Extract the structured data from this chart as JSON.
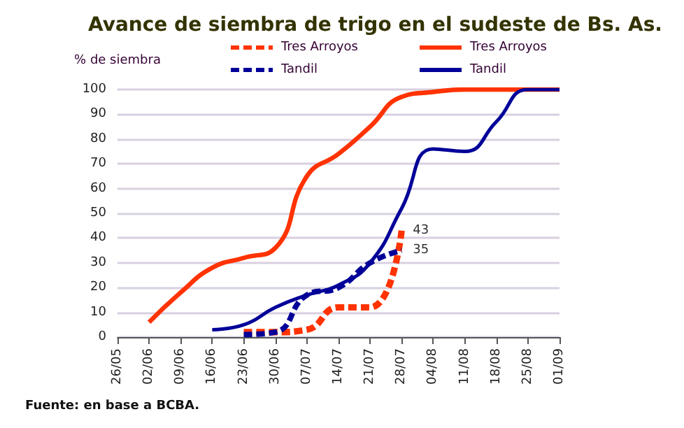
{
  "chart_data": {
    "type": "line",
    "title": "Avance de siembra de trigo en el sudeste de Bs. As.",
    "ylabel": "% de siembra",
    "categories": [
      "26/05",
      "02/06",
      "09/06",
      "16/06",
      "23/06",
      "30/06",
      "07/07",
      "14/07",
      "21/07",
      "28/07",
      "04/08",
      "11/08",
      "18/08",
      "25/08",
      "01/09"
    ],
    "series": [
      {
        "name": "Tres Arroyos",
        "color": "#ff3300",
        "line_style": "dashed",
        "values": [
          null,
          null,
          null,
          null,
          2,
          2,
          3,
          12,
          12,
          43,
          null,
          null,
          null,
          null,
          null
        ],
        "value_labels": [
          null,
          null,
          null,
          null,
          null,
          null,
          null,
          null,
          null,
          "43",
          null,
          null,
          null,
          null,
          null
        ]
      },
      {
        "name": "Tandil",
        "color": "#000099",
        "line_style": "dashed",
        "values": [
          null,
          null,
          null,
          null,
          1,
          2,
          17,
          20,
          30,
          35,
          null,
          null,
          null,
          null,
          null
        ],
        "value_labels": [
          null,
          null,
          null,
          null,
          null,
          null,
          null,
          null,
          null,
          "35",
          null,
          null,
          null,
          null,
          null
        ]
      },
      {
        "name": "Tres Arroyos",
        "color": "#ff3300",
        "line_style": "solid",
        "values": [
          null,
          6,
          18,
          28,
          32,
          36,
          65,
          74,
          85,
          97,
          99,
          100,
          100,
          100,
          100
        ]
      },
      {
        "name": "Tandil",
        "color": "#000099",
        "line_style": "solid",
        "values": [
          null,
          null,
          null,
          3,
          5,
          12,
          17,
          21,
          30,
          52,
          76,
          75,
          87,
          100,
          100
        ]
      }
    ],
    "ylim": [
      0,
      100
    ],
    "yticks": [
      0,
      10,
      20,
      30,
      40,
      50,
      60,
      70,
      80,
      90,
      100
    ],
    "grid": "y",
    "legend": "top",
    "marker": "none",
    "annotations": [
      "Fuente: en base a BCBA."
    ]
  }
}
